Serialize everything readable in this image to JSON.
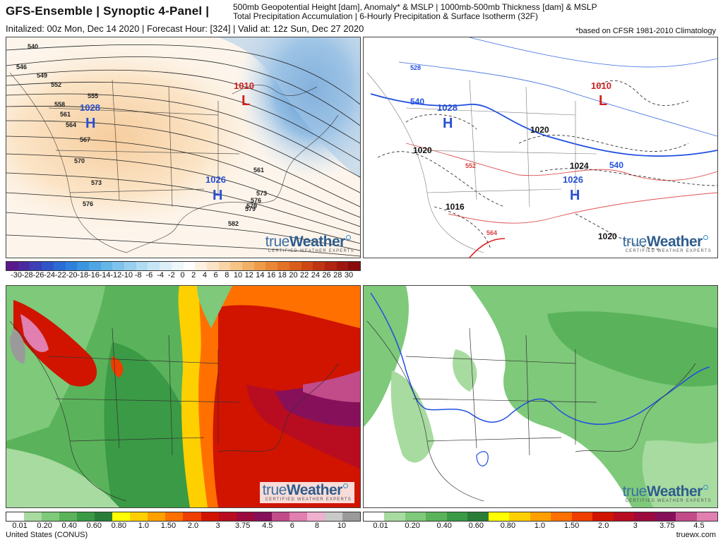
{
  "header": {
    "title": "GFS-Ensemble | Synoptic 4-Panel |",
    "desc_line1": "500mb Geopotential Height [dam], Anomaly* & MSLP | 1000mb-500mb Thickness [dam] & MSLP",
    "desc_line2": "Total Precipitation Accumulation | 6-Hourly Precipitation & Surface Isotherm (32F)",
    "init": "Initalized: 00z Mon, Dec 14 2020 | Forecast Hour: [324] | Valid at: 12z Sun, Dec 27 2020",
    "climatology": "*based on CFSR 1981-2010 Climatology"
  },
  "logo": {
    "part1": "true",
    "part2": "Weather",
    "sub": "CERTIFIED WEATHER EXPERTS"
  },
  "panel_tl": {
    "height_labels": [
      "540",
      "546",
      "549",
      "552",
      "555",
      "558",
      "561",
      "564",
      "567",
      "570",
      "573",
      "576",
      "579",
      "582",
      "561",
      "573",
      "576",
      "579"
    ],
    "low_label": "L",
    "low_value": "1010",
    "high1_label": "H",
    "high1_value": "1028",
    "high2_label": "H",
    "high2_value": "1026"
  },
  "panel_tr": {
    "thickness_labels": [
      "528",
      "540",
      "540",
      "552",
      "564"
    ],
    "pressure_labels": [
      "1020",
      "1020",
      "1024",
      "1016",
      "1020"
    ],
    "low_label": "L",
    "low_value": "1010",
    "high1_label": "H",
    "high1_value": "1028",
    "high2_label": "H",
    "high2_value": "1026"
  },
  "anomaly_bar": {
    "labels": [
      "-30",
      "-28",
      "-26",
      "-24",
      "-22",
      "-20",
      "-18",
      "-16",
      "-14",
      "-12",
      "-10",
      "-8",
      "-6",
      "-4",
      "-2",
      "0",
      "2",
      "4",
      "6",
      "8",
      "10",
      "12",
      "14",
      "16",
      "18",
      "20",
      "22",
      "24",
      "26",
      "28",
      "30"
    ],
    "colors": [
      "#5a1a8c",
      "#4b2aa0",
      "#3d3fb5",
      "#2f55c8",
      "#2a6bd4",
      "#2f80dc",
      "#3a94e0",
      "#4ea6e4",
      "#66b5e8",
      "#7fc3ec",
      "#98cfef",
      "#b0dbf2",
      "#c6e5f5",
      "#dbeff8",
      "#eef7fb",
      "#ffffff",
      "#fdf1e2",
      "#fbe4c6",
      "#f8d4a6",
      "#f5c386",
      "#f2b067",
      "#ee9c4c",
      "#e98735",
      "#e27225",
      "#d95c1a",
      "#cd4715",
      "#bf3412",
      "#b02410",
      "#9d170e",
      "#880c0c"
    ]
  },
  "precip_bar_left": {
    "labels": [
      "0.01",
      "0.20",
      "0.40",
      "0.60",
      "0.80",
      "1.0",
      "1.50",
      "2.0",
      "3",
      "3.75",
      "4.5",
      "6",
      "8",
      "10"
    ],
    "colors": [
      "#ffffff",
      "#a8dba0",
      "#7ec97a",
      "#5ab35a",
      "#3a9a45",
      "#2a7d38",
      "#ffff00",
      "#ffd000",
      "#ffa000",
      "#ff7000",
      "#ee3e00",
      "#d01400",
      "#b80c20",
      "#9c0a3e",
      "#87105a",
      "#c24b8a",
      "#e07fb0",
      "#f0b0d0",
      "#c9c9c9",
      "#9a9a9a"
    ]
  },
  "precip_bar_right": {
    "labels": [
      "0.01",
      "0.20",
      "0.40",
      "0.60",
      "0.80",
      "1.0",
      "1.50",
      "2.0",
      "3",
      "3.75",
      "4.5"
    ],
    "colors": [
      "#ffffff",
      "#a8dba0",
      "#7ec97a",
      "#5ab35a",
      "#3a9a45",
      "#2a7d38",
      "#ffff00",
      "#ffd000",
      "#ffa000",
      "#ff7000",
      "#ee3e00",
      "#d01400",
      "#b80c20",
      "#9c0a3e",
      "#87105a",
      "#c24b8a",
      "#e07fb0"
    ]
  },
  "footer": {
    "region": "United States (CONUS)",
    "site": "truewx.com"
  }
}
